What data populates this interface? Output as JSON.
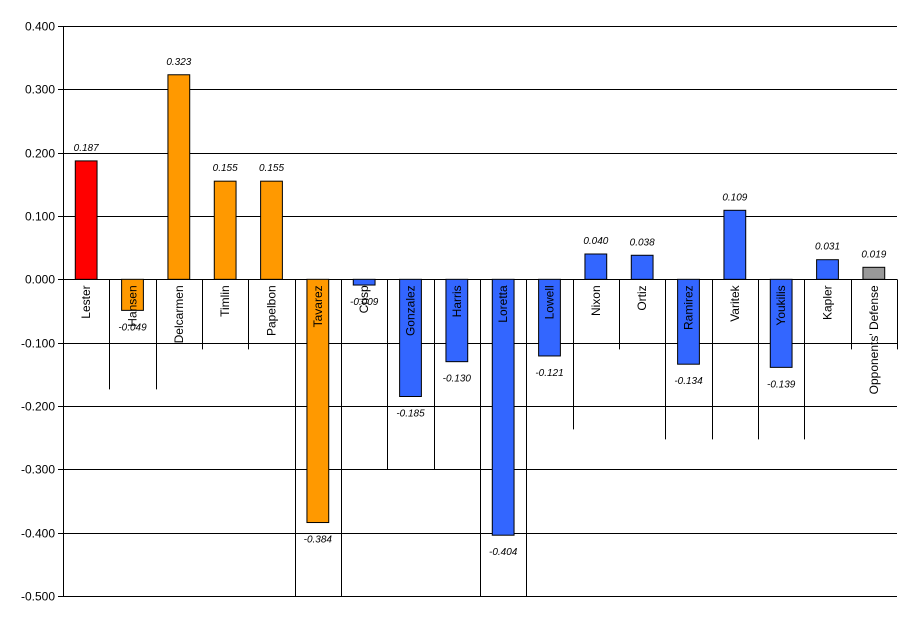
{
  "chart_data": {
    "type": "bar",
    "title": "",
    "xlabel": "",
    "ylabel": "",
    "ylim": [
      -0.5,
      0.4
    ],
    "yticks": [
      0.4,
      0.3,
      0.2,
      0.1,
      0.0,
      -0.1,
      -0.2,
      -0.3,
      -0.4,
      -0.5
    ],
    "ytick_labels": [
      "0.400",
      "0.300",
      "0.200",
      "0.100",
      "0.000",
      "-0.100",
      "-0.200",
      "-0.300",
      "-0.400",
      "-0.500"
    ],
    "grid": true,
    "legend": "none",
    "categories": [
      "Lester",
      "Hansen",
      "Delcarmen",
      "Timlin",
      "Papelbon",
      "Tavarez",
      "Crisp",
      "Gonzalez",
      "Harris",
      "Loretta",
      "Lowell",
      "Nixon",
      "Ortiz",
      "Ramirez",
      "Varitek",
      "Youkilis",
      "Kapler",
      "Opponents' Defense"
    ],
    "values": [
      0.187,
      -0.049,
      0.323,
      0.155,
      0.155,
      -0.384,
      -0.009,
      -0.185,
      -0.13,
      -0.404,
      -0.121,
      0.04,
      0.038,
      -0.134,
      0.109,
      -0.139,
      0.031,
      0.019
    ],
    "value_labels": [
      "0.187",
      "-0.049",
      "0.323",
      "0.155",
      "0.155",
      "-0.384",
      "-0.009",
      "-0.185",
      "-0.130",
      "-0.404",
      "-0.121",
      "0.040",
      "0.038",
      "-0.134",
      "0.109",
      "-0.139",
      "0.031",
      "0.019"
    ],
    "colors": [
      "#ff0000",
      "#ff9900",
      "#ff9900",
      "#ff9900",
      "#ff9900",
      "#ff9900",
      "#3366ff",
      "#3366ff",
      "#3366ff",
      "#3366ff",
      "#3366ff",
      "#3366ff",
      "#3366ff",
      "#3366ff",
      "#3366ff",
      "#3366ff",
      "#3366ff",
      "#999999"
    ],
    "category_axis_at": 0.0,
    "category_label_orientation": "vertical"
  }
}
